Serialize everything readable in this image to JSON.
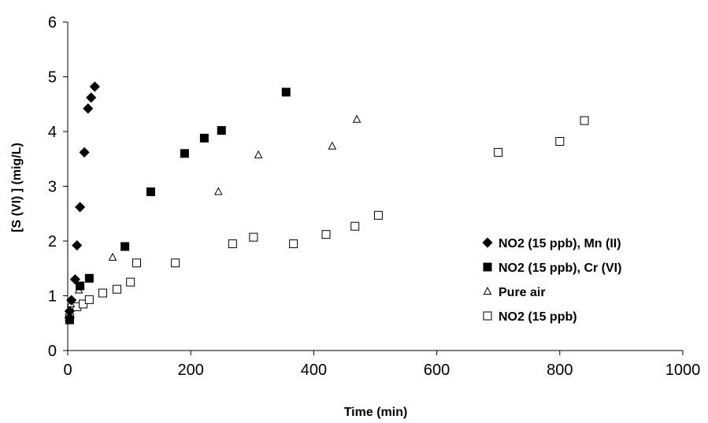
{
  "chart_data": {
    "type": "scatter",
    "title": "",
    "xlabel": "Time (min)",
    "ylabel": "[S (VI) ] (mig/L)",
    "xlim": [
      0,
      1000
    ],
    "ylim": [
      0,
      6
    ],
    "x_ticks": [
      "0",
      "200",
      "400",
      "600",
      "800",
      "1000"
    ],
    "y_ticks": [
      "0",
      "1",
      "2",
      "3",
      "4",
      "5",
      "6"
    ],
    "grid": false,
    "legend_position": "right",
    "series": [
      {
        "name": "NO2 (15 ppb), Mn (II)",
        "marker": "diamond-filled",
        "color": "#000000",
        "points": [
          [
            3,
            0.6
          ],
          [
            3,
            0.72
          ],
          [
            6,
            0.92
          ],
          [
            12,
            1.3
          ],
          [
            15,
            1.92
          ],
          [
            20,
            2.62
          ],
          [
            27,
            3.62
          ],
          [
            33,
            4.42
          ],
          [
            38,
            4.62
          ],
          [
            44,
            4.82
          ]
        ]
      },
      {
        "name": "NO2 (15 ppb), Cr (VI)",
        "marker": "square-filled",
        "color": "#000000",
        "points": [
          [
            3,
            0.56
          ],
          [
            20,
            1.18
          ],
          [
            35,
            1.32
          ],
          [
            93,
            1.9
          ],
          [
            135,
            2.9
          ],
          [
            190,
            3.6
          ],
          [
            222,
            3.88
          ],
          [
            250,
            4.02
          ],
          [
            355,
            4.72
          ]
        ]
      },
      {
        "name": "Pure air",
        "marker": "triangle-open",
        "color": "#000000",
        "points": [
          [
            3,
            0.62
          ],
          [
            5,
            0.85
          ],
          [
            18,
            1.1
          ],
          [
            73,
            1.7
          ],
          [
            245,
            2.9
          ],
          [
            310,
            3.57
          ],
          [
            430,
            3.73
          ],
          [
            470,
            4.22
          ]
        ]
      },
      {
        "name": "NO2 (15 ppb)",
        "marker": "square-open",
        "color": "#000000",
        "points": [
          [
            3,
            0.6
          ],
          [
            15,
            0.8
          ],
          [
            25,
            0.85
          ],
          [
            35,
            0.93
          ],
          [
            57,
            1.05
          ],
          [
            80,
            1.12
          ],
          [
            102,
            1.25
          ],
          [
            112,
            1.6
          ],
          [
            175,
            1.6
          ],
          [
            268,
            1.95
          ],
          [
            302,
            2.07
          ],
          [
            367,
            1.95
          ],
          [
            420,
            2.12
          ],
          [
            467,
            2.27
          ],
          [
            505,
            2.47
          ],
          [
            700,
            3.62
          ],
          [
            800,
            3.82
          ],
          [
            840,
            4.2
          ]
        ]
      }
    ]
  }
}
